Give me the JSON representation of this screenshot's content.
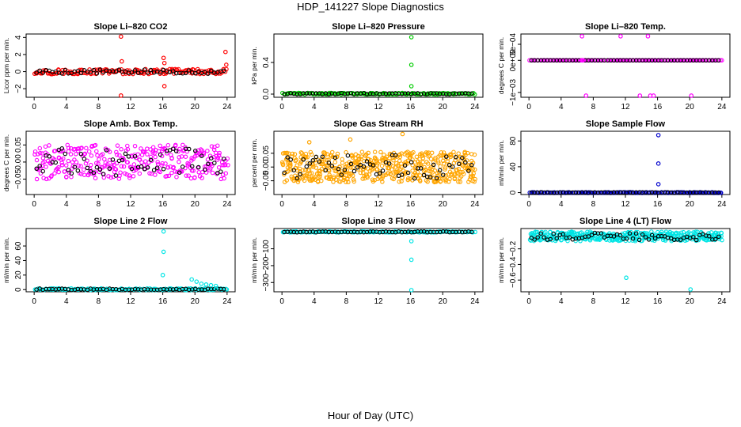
{
  "page": {
    "title": "HDP_141227  Slope Diagnostics",
    "xlabel": "Hour of Day (UTC)"
  },
  "chart_data": [
    {
      "type": "scatter",
      "title": "Slope Li–820 CO2",
      "ylabel": "Licor ppm per min.",
      "color": "#ff0000",
      "xlim": [
        -1,
        25
      ],
      "ylim": [
        -3,
        4.4
      ],
      "xticks": [
        0,
        4,
        8,
        12,
        16,
        20,
        24
      ],
      "yticks": [
        -2,
        0,
        2,
        4
      ],
      "ytick_labels": [
        "−2",
        "0",
        "2",
        "4"
      ],
      "noise": {
        "base": 0,
        "spread": 0.3,
        "count": 150
      },
      "outliers": [
        [
          10.8,
          4.1
        ],
        [
          10.9,
          1.2
        ],
        [
          10.8,
          -2.8
        ],
        [
          16.1,
          1.6
        ],
        [
          16.2,
          1.0
        ],
        [
          16.2,
          -1.7
        ],
        [
          23.8,
          2.3
        ],
        [
          23.9,
          0.8
        ]
      ]
    },
    {
      "type": "scatter",
      "title": "Slope Li–820 Pressure",
      "ylabel": "kPa per min.",
      "color": "#00cc00",
      "xlim": [
        -1,
        25
      ],
      "ylim": [
        -0.04,
        0.76
      ],
      "xticks": [
        0,
        4,
        8,
        12,
        16,
        20,
        24
      ],
      "yticks": [
        0.0,
        0.4
      ],
      "ytick_labels": [
        "0.0",
        "0.4"
      ],
      "noise": {
        "base": 0.005,
        "spread": 0.01,
        "count": 150
      },
      "outliers": [
        [
          16.1,
          0.72
        ],
        [
          16.1,
          0.37
        ],
        [
          16.1,
          0.1
        ]
      ]
    },
    {
      "type": "scatter",
      "title": "Slope Li–820 Temp.",
      "ylabel": "degrees C per min.",
      "color": "#ff00ff",
      "xlim": [
        -1,
        25
      ],
      "ylim": [
        -0.00115,
        0.00082
      ],
      "xticks": [
        0,
        4,
        8,
        12,
        16,
        20,
        24
      ],
      "yticks": [
        -0.001,
        0,
        0.0005
      ],
      "ytick_labels": [
        "−1e−03",
        "0e+00",
        "5e−04"
      ],
      "noise": {
        "base": 0,
        "spread": 0.0,
        "count": 130
      },
      "outliers": [
        [
          6.6,
          0.00075
        ],
        [
          11.4,
          0.00075
        ],
        [
          14.8,
          0.00075
        ],
        [
          7.1,
          -0.0011
        ],
        [
          13.8,
          -0.0011
        ],
        [
          15.1,
          -0.0011
        ],
        [
          15.5,
          -0.0011
        ],
        [
          20.2,
          -0.0011
        ],
        [
          6.6,
          0.0
        ],
        [
          6.7,
          0.0
        ]
      ]
    },
    {
      "type": "scatter",
      "title": "Slope Amb. Box Temp.",
      "ylabel": "degrees C per min.",
      "color": "#ff00ff",
      "xlim": [
        -1,
        25
      ],
      "ylim": [
        -0.095,
        0.09
      ],
      "xticks": [
        0,
        4,
        8,
        12,
        16,
        20,
        24
      ],
      "yticks": [
        -0.05,
        0.0,
        0.05
      ],
      "ytick_labels": [
        "−0.05",
        "0.00",
        "0.05"
      ],
      "noise": {
        "base": 0,
        "spread": 0.05,
        "count": 320
      },
      "outliers": []
    },
    {
      "type": "scatter",
      "title": "Slope Gas Stream RH",
      "ylabel": "percent per min.",
      "color": "#ffa500",
      "xlim": [
        -1,
        25
      ],
      "ylim": [
        -0.1,
        0.13
      ],
      "xticks": [
        0,
        4,
        8,
        12,
        16,
        20,
        24
      ],
      "yticks": [
        -0.05,
        0.0,
        0.05
      ],
      "ytick_labels": [
        "−0.05",
        "0.00",
        "0.05"
      ],
      "noise": {
        "base": 0,
        "spread": 0.055,
        "count": 520
      },
      "outliers": [
        [
          15.0,
          0.12
        ],
        [
          8.5,
          0.1
        ],
        [
          3.4,
          0.09
        ]
      ]
    },
    {
      "type": "scatter",
      "title": "Slope Sample Flow",
      "ylabel": "ml/min per min.",
      "color": "#0000cc",
      "xlim": [
        -1,
        25
      ],
      "ylim": [
        -3,
        95
      ],
      "xticks": [
        0,
        4,
        8,
        12,
        16,
        20,
        24
      ],
      "yticks": [
        0,
        40,
        80
      ],
      "ytick_labels": [
        "0",
        "40",
        "80"
      ],
      "noise": {
        "base": 0,
        "spread": 0.6,
        "count": 150
      },
      "outliers": [
        [
          16.1,
          89
        ],
        [
          16.1,
          45
        ],
        [
          16.1,
          13
        ]
      ]
    },
    {
      "type": "scatter",
      "title": "Slope Line 2 Flow",
      "ylabel": "ml/min per min.",
      "color": "#00e5e5",
      "xlim": [
        -1,
        25
      ],
      "ylim": [
        -3,
        84
      ],
      "xticks": [
        0,
        4,
        8,
        12,
        16,
        20,
        24
      ],
      "yticks": [
        0,
        20,
        40,
        60
      ],
      "ytick_labels": [
        "0",
        "20",
        "40",
        "60"
      ],
      "noise": {
        "base": 0.5,
        "spread": 1.2,
        "count": 150
      },
      "outliers": [
        [
          16.1,
          80
        ],
        [
          16.1,
          52
        ],
        [
          16.0,
          20
        ],
        [
          19.6,
          14
        ],
        [
          20.2,
          11
        ],
        [
          20.8,
          8
        ],
        [
          21.4,
          7
        ],
        [
          22.0,
          6
        ],
        [
          22.6,
          5
        ]
      ]
    },
    {
      "type": "scatter",
      "title": "Slope Line 3 Flow",
      "ylabel": "ml/min per min.",
      "color": "#00e5e5",
      "xlim": [
        -1,
        25
      ],
      "ylim": [
        -355,
        20
      ],
      "xticks": [
        0,
        4,
        8,
        12,
        16,
        20,
        24
      ],
      "yticks": [
        -300,
        -200,
        -100
      ],
      "ytick_labels": [
        "−300",
        "−200",
        "−100"
      ],
      "noise": {
        "base": 0,
        "spread": 3,
        "count": 150
      },
      "outliers": [
        [
          16.1,
          -55
        ],
        [
          16.1,
          -165
        ],
        [
          16.1,
          -345
        ]
      ]
    },
    {
      "type": "scatter",
      "title": "Slope Line 4 (LT) Flow",
      "ylabel": "ml/min per min.",
      "color": "#00e5e5",
      "xlim": [
        -1,
        25
      ],
      "ylim": [
        -0.75,
        0.06
      ],
      "xticks": [
        0,
        4,
        8,
        12,
        16,
        20,
        24
      ],
      "yticks": [
        -0.6,
        -0.4,
        -0.2
      ],
      "ytick_labels": [
        "−0.6",
        "−0.4",
        "−0.2"
      ],
      "noise": {
        "base": -0.04,
        "spread": 0.06,
        "count": 380
      },
      "outliers": [
        [
          12.1,
          -0.57
        ],
        [
          20.1,
          -0.72
        ]
      ]
    }
  ]
}
